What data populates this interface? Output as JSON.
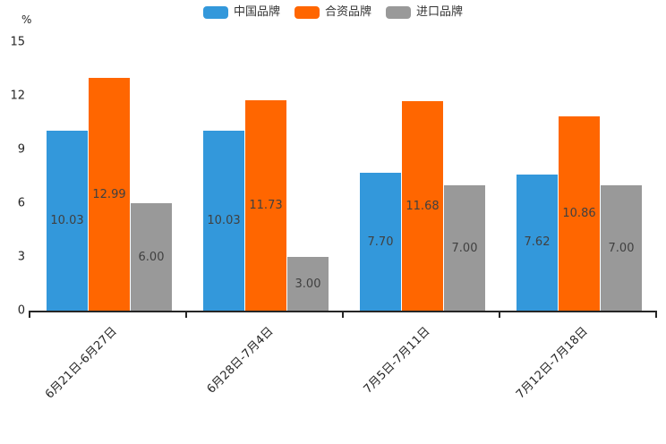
{
  "chart_data": {
    "type": "bar",
    "unit_label": "%",
    "categories": [
      "6月21日-6月27日",
      "6月28日-7月4日",
      "7月5日-7月11日",
      "7月12日-7月18日"
    ],
    "series": [
      {
        "name": "中国品牌",
        "color": "#3398DB",
        "values": [
          10.03,
          10.03,
          7.7,
          7.62
        ]
      },
      {
        "name": "合资品牌",
        "color": "#FF6600",
        "values": [
          12.99,
          11.73,
          11.68,
          10.86
        ]
      },
      {
        "name": "进口品牌",
        "color": "#999999",
        "values": [
          6.0,
          3.0,
          7.0,
          7.0
        ]
      }
    ],
    "value_label_decimals": 2,
    "y_ticks": [
      "0",
      "3",
      "6",
      "9",
      "12",
      "15"
    ],
    "ylim": [
      0,
      15
    ],
    "legend_position": "top",
    "grid": false,
    "x_tick_style": "boundary",
    "axis_color": "#262626",
    "value_label_color": "#404040"
  }
}
